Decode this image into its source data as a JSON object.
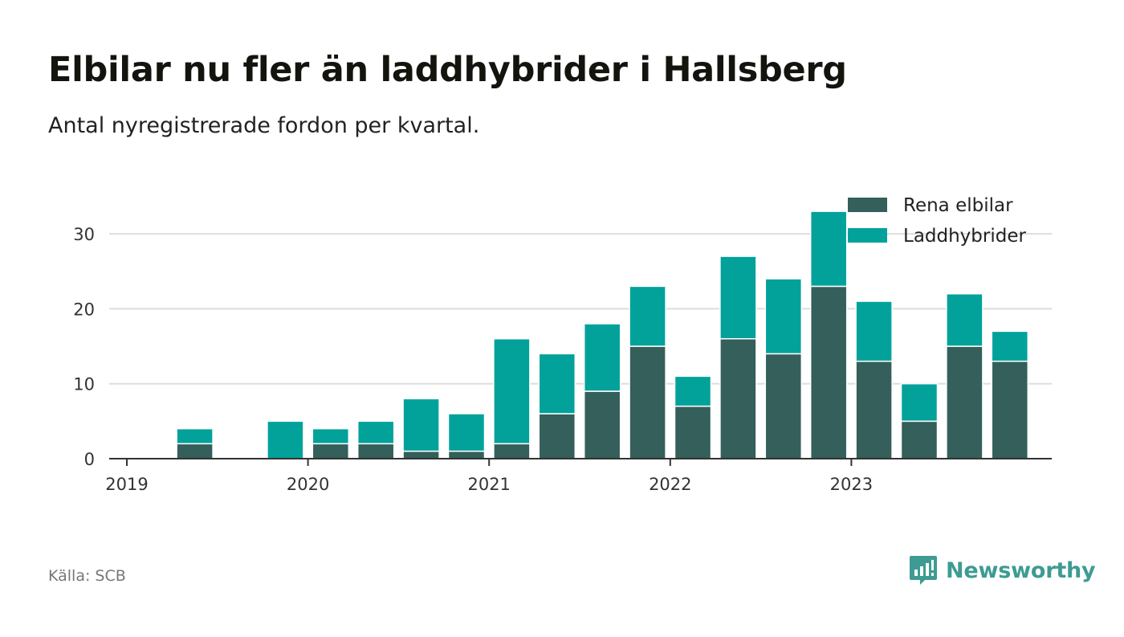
{
  "title": "Elbilar nu fler än laddhybrider i Hallsberg",
  "subtitle": "Antal nyregistrerade fordon per kvartal.",
  "source": "Källa: SCB",
  "brand": "Newsworthy",
  "colors": {
    "elbilar": "#345f5a",
    "laddhybrider": "#02a29b",
    "grid": "#dddddd",
    "axis": "#333333",
    "brand": "#3e9b93"
  },
  "chart_data": {
    "type": "bar",
    "stacked": true,
    "title": "Elbilar nu fler än laddhybrider i Hallsberg",
    "subtitle": "Antal nyregistrerade fordon per kvartal.",
    "categories": [
      "2019 Q1",
      "2019 Q2",
      "2019 Q3",
      "2019 Q4",
      "2020 Q1",
      "2020 Q2",
      "2020 Q3",
      "2020 Q4",
      "2021 Q1",
      "2021 Q2",
      "2021 Q3",
      "2021 Q4",
      "2022 Q1",
      "2022 Q2",
      "2022 Q3",
      "2022 Q4",
      "2023 Q1",
      "2023 Q2",
      "2023 Q3",
      "2023 Q4"
    ],
    "series": [
      {
        "name": "Rena elbilar",
        "values": [
          0,
          2,
          0,
          0,
          2,
          2,
          1,
          1,
          2,
          6,
          9,
          15,
          7,
          16,
          14,
          23,
          13,
          5,
          15,
          13
        ]
      },
      {
        "name": "Laddhybrider",
        "values": [
          0,
          2,
          0,
          5,
          2,
          3,
          7,
          5,
          14,
          8,
          9,
          8,
          4,
          11,
          10,
          10,
          8,
          5,
          7,
          4
        ]
      }
    ],
    "x_tick_labels": [
      "2019",
      "2020",
      "2021",
      "2022",
      "2023"
    ],
    "y_ticks": [
      0,
      10,
      20,
      30
    ],
    "ylim": [
      0,
      35
    ],
    "xlabel": "",
    "ylabel": "",
    "grid": true,
    "legend_position": "top-right"
  }
}
